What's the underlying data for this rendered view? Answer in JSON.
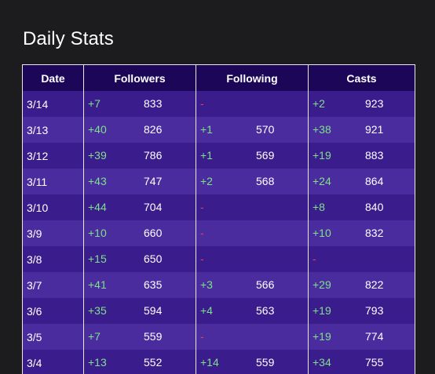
{
  "title": "Daily Stats",
  "headers": {
    "date": "Date",
    "followers": "Followers",
    "following": "Following",
    "casts": "Casts"
  },
  "rows": [
    {
      "date": "3/14",
      "followers": {
        "delta": "+7",
        "value": "833"
      },
      "following": {
        "delta": "-",
        "value": ""
      },
      "casts": {
        "delta": "+2",
        "value": "923"
      }
    },
    {
      "date": "3/13",
      "followers": {
        "delta": "+40",
        "value": "826"
      },
      "following": {
        "delta": "+1",
        "value": "570"
      },
      "casts": {
        "delta": "+38",
        "value": "921"
      }
    },
    {
      "date": "3/12",
      "followers": {
        "delta": "+39",
        "value": "786"
      },
      "following": {
        "delta": "+1",
        "value": "569"
      },
      "casts": {
        "delta": "+19",
        "value": "883"
      }
    },
    {
      "date": "3/11",
      "followers": {
        "delta": "+43",
        "value": "747"
      },
      "following": {
        "delta": "+2",
        "value": "568"
      },
      "casts": {
        "delta": "+24",
        "value": "864"
      }
    },
    {
      "date": "3/10",
      "followers": {
        "delta": "+44",
        "value": "704"
      },
      "following": {
        "delta": "-",
        "value": ""
      },
      "casts": {
        "delta": "+8",
        "value": "840"
      }
    },
    {
      "date": "3/9",
      "followers": {
        "delta": "+10",
        "value": "660"
      },
      "following": {
        "delta": "-",
        "value": ""
      },
      "casts": {
        "delta": "+10",
        "value": "832"
      }
    },
    {
      "date": "3/8",
      "followers": {
        "delta": "+15",
        "value": "650"
      },
      "following": {
        "delta": "-",
        "value": ""
      },
      "casts": {
        "delta": "-",
        "value": ""
      }
    },
    {
      "date": "3/7",
      "followers": {
        "delta": "+41",
        "value": "635"
      },
      "following": {
        "delta": "+3",
        "value": "566"
      },
      "casts": {
        "delta": "+29",
        "value": "822"
      }
    },
    {
      "date": "3/6",
      "followers": {
        "delta": "+35",
        "value": "594"
      },
      "following": {
        "delta": "+4",
        "value": "563"
      },
      "casts": {
        "delta": "+19",
        "value": "793"
      }
    },
    {
      "date": "3/5",
      "followers": {
        "delta": "+7",
        "value": "559"
      },
      "following": {
        "delta": "-",
        "value": ""
      },
      "casts": {
        "delta": "+19",
        "value": "774"
      }
    },
    {
      "date": "3/4",
      "followers": {
        "delta": "+13",
        "value": "552"
      },
      "following": {
        "delta": "+14",
        "value": "559"
      },
      "casts": {
        "delta": "+34",
        "value": "755"
      }
    }
  ],
  "colors": {
    "background": "#1c1c1f",
    "header_bg": "#1c0658",
    "row_odd": "#3b1c8c",
    "row_even": "#4a2c9e",
    "positive": "#7ee08a",
    "negative": "#e0405a"
  }
}
